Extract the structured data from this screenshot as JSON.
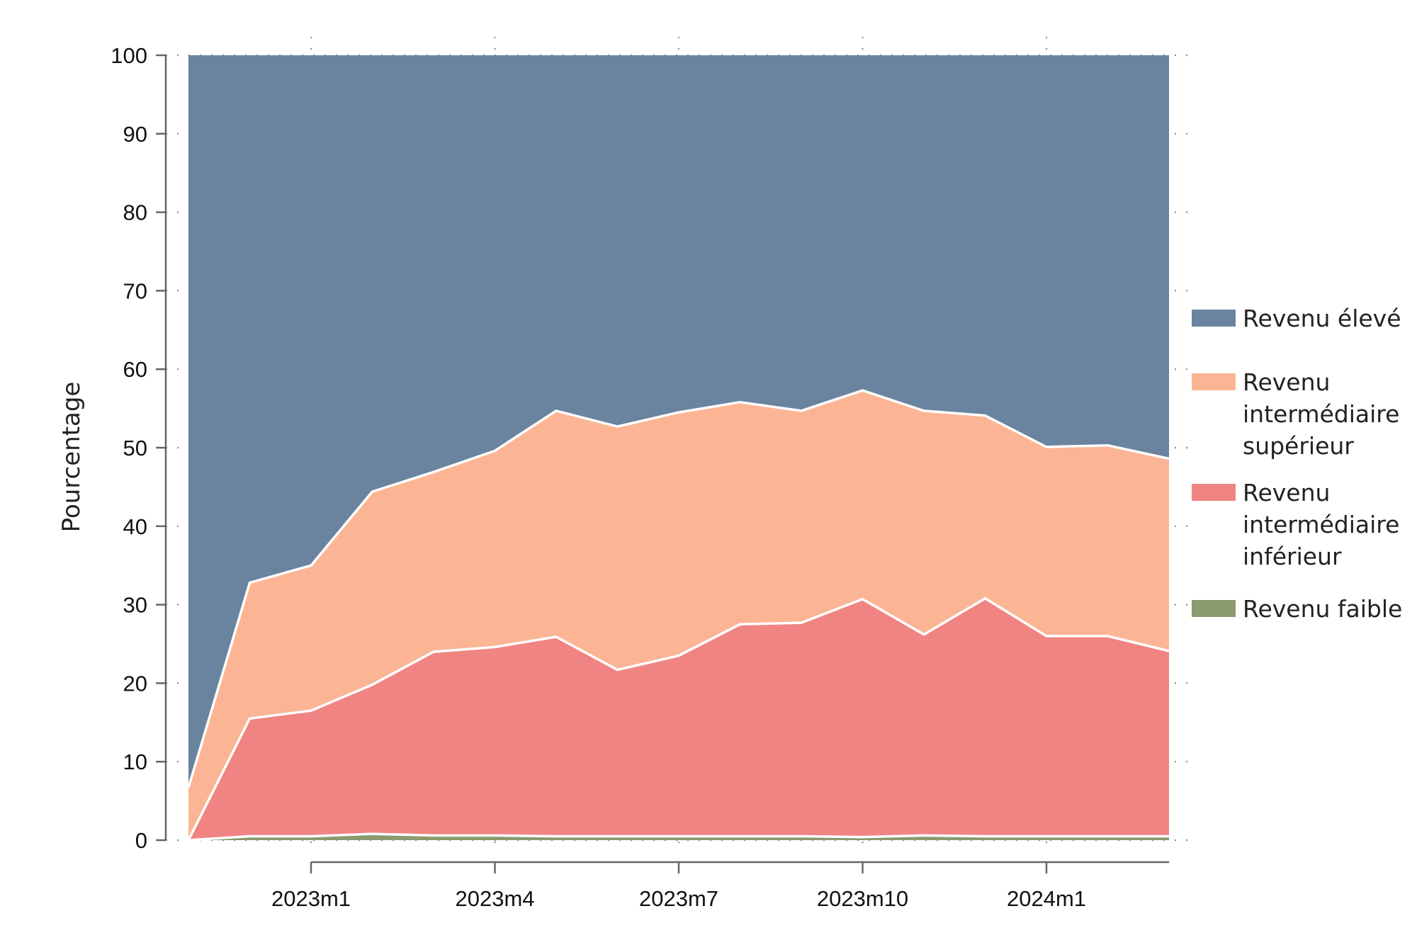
{
  "chart_data": {
    "type": "area",
    "stacked": true,
    "ylabel": "Pourcentage",
    "xlabel": "",
    "ylim": [
      0,
      100
    ],
    "yticks": [
      0,
      10,
      20,
      30,
      40,
      50,
      60,
      70,
      80,
      90,
      100
    ],
    "x": [
      "2022m11",
      "2022m12",
      "2023m1",
      "2023m2",
      "2023m3",
      "2023m4",
      "2023m5",
      "2023m6",
      "2023m7",
      "2023m8",
      "2023m9",
      "2023m10",
      "2023m11",
      "2023m12",
      "2024m1",
      "2024m2",
      "2024m3"
    ],
    "xtick_labels": [
      "2023m1",
      "2023m4",
      "2023m7",
      "2023m10",
      "2024m1"
    ],
    "grid": "dotted",
    "legend_position": "right",
    "series": [
      {
        "name": "Revenu faible",
        "color": "#8b9b6e",
        "values": [
          0.0,
          0.5,
          0.5,
          0.8,
          0.6,
          0.6,
          0.5,
          0.5,
          0.5,
          0.5,
          0.5,
          0.4,
          0.6,
          0.5,
          0.5,
          0.5,
          0.5
        ]
      },
      {
        "name": "Revenu intermédiaire inférieur",
        "color": "#f08482",
        "values": [
          0.0,
          15.0,
          16.0,
          19.0,
          23.4,
          24.0,
          25.4,
          21.2,
          23.0,
          27.0,
          27.2,
          30.3,
          25.6,
          30.3,
          25.5,
          25.5,
          23.6
        ]
      },
      {
        "name": "Revenu intermédiaire supérieur",
        "color": "#fcb594",
        "values": [
          6.7,
          17.3,
          18.5,
          24.6,
          22.9,
          25.0,
          28.8,
          31.0,
          31.0,
          28.3,
          27.0,
          26.6,
          28.5,
          23.3,
          24.1,
          24.3,
          24.5
        ]
      },
      {
        "name": "Revenu élevé",
        "color": "#6a849f",
        "values": [
          93.3,
          67.2,
          65.0,
          55.6,
          53.1,
          50.4,
          45.3,
          47.3,
          45.5,
          44.2,
          45.3,
          42.7,
          45.3,
          45.9,
          49.9,
          49.7,
          51.4
        ]
      }
    ],
    "legend": {
      "entries": [
        {
          "color": "#6a849f",
          "lines": [
            "Revenu élevé"
          ]
        },
        {
          "color": "#fcb594",
          "lines": [
            "Revenu",
            "intermédiaire",
            "supérieur"
          ]
        },
        {
          "color": "#f08482",
          "lines": [
            "Revenu",
            "intermédiaire",
            "inférieur"
          ]
        },
        {
          "color": "#8b9b6e",
          "lines": [
            "Revenu faible"
          ]
        }
      ]
    }
  }
}
